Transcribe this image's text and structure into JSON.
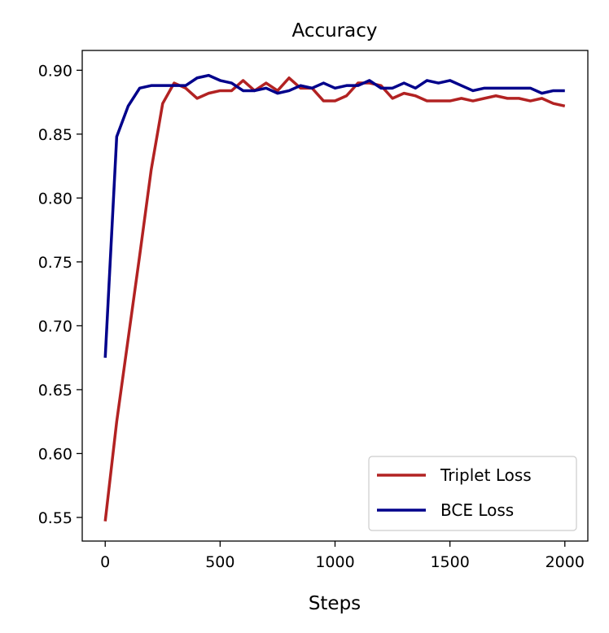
{
  "chart_data": {
    "type": "line",
    "title": "Accuracy",
    "xlabel": "Steps",
    "ylabel": "",
    "xlim": [
      -100,
      2100
    ],
    "ylim": [
      0.5315,
      0.9155
    ],
    "xticks": [
      0,
      500,
      1000,
      1500,
      2000
    ],
    "xtick_labels": [
      "0",
      "500",
      "1000",
      "1500",
      "2000"
    ],
    "yticks": [
      0.55,
      0.6,
      0.65,
      0.7,
      0.75,
      0.8,
      0.85,
      0.9
    ],
    "ytick_labels": [
      "0.55",
      "0.60",
      "0.65",
      "0.70",
      "0.75",
      "0.80",
      "0.85",
      "0.90"
    ],
    "grid": false,
    "legend_position": "lower-right",
    "x": [
      0,
      50,
      100,
      150,
      200,
      250,
      300,
      350,
      400,
      450,
      500,
      550,
      600,
      650,
      700,
      750,
      800,
      850,
      900,
      950,
      1000,
      1050,
      1100,
      1150,
      1200,
      1250,
      1300,
      1350,
      1400,
      1450,
      1500,
      1550,
      1600,
      1650,
      1700,
      1750,
      1800,
      1850,
      1900,
      1950,
      2000
    ],
    "series": [
      {
        "name": "Triplet Loss",
        "color": "#b22222",
        "values": [
          0.547,
          0.625,
          0.69,
          0.755,
          0.822,
          0.874,
          0.89,
          0.886,
          0.878,
          0.882,
          0.884,
          0.884,
          0.892,
          0.884,
          0.89,
          0.884,
          0.894,
          0.886,
          0.886,
          0.876,
          0.876,
          0.88,
          0.89,
          0.89,
          0.888,
          0.878,
          0.882,
          0.88,
          0.876,
          0.876,
          0.876,
          0.878,
          0.876,
          0.878,
          0.88,
          0.878,
          0.878,
          0.876,
          0.878,
          0.874,
          0.872
        ]
      },
      {
        "name": "BCE Loss",
        "color": "#00008b",
        "values": [
          0.675,
          0.848,
          0.872,
          0.886,
          0.888,
          0.888,
          0.888,
          0.888,
          0.894,
          0.896,
          0.892,
          0.89,
          0.884,
          0.884,
          0.886,
          0.882,
          0.884,
          0.888,
          0.886,
          0.89,
          0.886,
          0.888,
          0.888,
          0.892,
          0.886,
          0.886,
          0.89,
          0.886,
          0.892,
          0.89,
          0.892,
          0.888,
          0.884,
          0.886,
          0.886,
          0.886,
          0.886,
          0.886,
          0.882,
          0.884,
          0.884
        ]
      }
    ]
  }
}
